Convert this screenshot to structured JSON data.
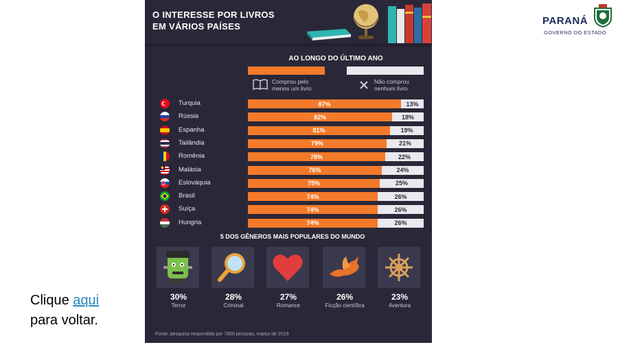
{
  "infographic": {
    "title": "O INTERESSE POR LIVROS\nEM VÁRIOS PAÍSES",
    "period": "AO LONGO DO ÚLTIMO ANO",
    "legend": {
      "bought": "Comprou pelo menos um livro",
      "not_bought": "Não comprou nenhum livro",
      "bought_color": "#f47a2a",
      "not_bought_color": "#e9e9ee"
    },
    "countries": [
      {
        "name": "Turquia",
        "bought": "87%",
        "not": "13%",
        "bought_value": 87,
        "flag": "turkey-flag-icon"
      },
      {
        "name": "Rússia",
        "bought": "82%",
        "not": "18%",
        "bought_value": 82,
        "flag": "russia-flag-icon"
      },
      {
        "name": "Espanha",
        "bought": "81%",
        "not": "19%",
        "bought_value": 81,
        "flag": "spain-flag-icon"
      },
      {
        "name": "Tailândia",
        "bought": "79%",
        "not": "21%",
        "bought_value": 79,
        "flag": "thailand-flag-icon"
      },
      {
        "name": "Romênia",
        "bought": "78%",
        "not": "22%",
        "bought_value": 78,
        "flag": "romania-flag-icon"
      },
      {
        "name": "Malásia",
        "bought": "76%",
        "not": "24%",
        "bought_value": 76,
        "flag": "malaysia-flag-icon"
      },
      {
        "name": "Eslováquia",
        "bought": "75%",
        "not": "25%",
        "bought_value": 75,
        "flag": "slovakia-flag-icon"
      },
      {
        "name": "Brasil",
        "bought": "74%",
        "not": "26%",
        "bought_value": 74,
        "flag": "brazil-flag-icon"
      },
      {
        "name": "Suíça",
        "bought": "74%",
        "not": "26%",
        "bought_value": 74,
        "flag": "switzerland-flag-icon"
      },
      {
        "name": "Hungria",
        "bought": "74%",
        "not": "26%",
        "bought_value": 74,
        "flag": "hungary-flag-icon"
      }
    ],
    "genres_title": "5 DOS GÊNEROS MAIS POPULARES DO MUNDO",
    "genres": [
      {
        "pct": "30%",
        "name": "Terror",
        "icon": "frankenstein-icon"
      },
      {
        "pct": "28%",
        "name": "Criminal",
        "icon": "magnifier-icon"
      },
      {
        "pct": "27%",
        "name": "Romance",
        "icon": "heart-icon"
      },
      {
        "pct": "26%",
        "name": "Ficção científica",
        "icon": "dragon-icon"
      },
      {
        "pct": "23%",
        "name": "Aventura",
        "icon": "ship-wheel-icon"
      }
    ],
    "source": "Fonte: pesquisa respondida por 7800 pessoas, março de 2019"
  },
  "logo": {
    "name": "PARANÁ",
    "subtitle": "GOVERNO DO ESTADO"
  },
  "caption": {
    "prefix": "Clique ",
    "link": "aqui",
    "suffix": "para voltar."
  }
}
